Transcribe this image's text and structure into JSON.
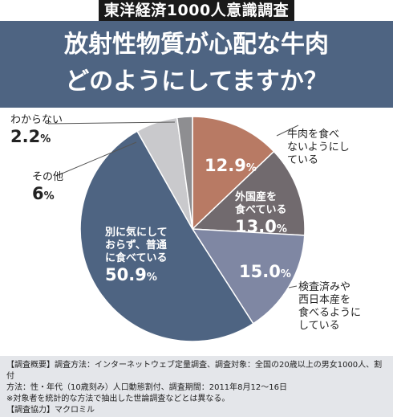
{
  "survey_tag": "東洋経済1000人意識調査",
  "title_line1": "放射性物質が心配な牛肉",
  "title_line2": "どのようにしてますか？",
  "chart_data": {
    "type": "pie",
    "start_angle_deg": 0,
    "direction": "clockwise",
    "slices": [
      {
        "label": "牛肉を食べないようにしている",
        "value": 12.9,
        "color": "#b87a64"
      },
      {
        "label": "外国産を食べている",
        "value": 13.0,
        "color": "#716a6e"
      },
      {
        "label": "検査済みや西日本産を食べるようにしている",
        "value": 15.0,
        "color": "#7f87a3"
      },
      {
        "label": "別に気にしておらず、普通に食べている",
        "value": 50.9,
        "color": "#4e6482"
      },
      {
        "label": "その他",
        "value": 6.0,
        "color": "#c9c9cc"
      },
      {
        "label": "わからない",
        "value": 2.2,
        "color": "#8e8e91"
      }
    ]
  },
  "labels": {
    "dont_eat_1": "牛肉を食べ",
    "dont_eat_2": "ないようにし",
    "dont_eat_3": "ている",
    "dont_eat_value": "12.9",
    "foreign_1": "外国産を",
    "foreign_2": "食べている",
    "foreign_value": "13.0",
    "checked_1": "検査済みや",
    "checked_2": "西日本産を",
    "checked_3": "食べるように",
    "checked_4": "している",
    "checked_value": "15.0",
    "normal_1": "別に気にして",
    "normal_2": "おらず、普通",
    "normal_3": "に食べている",
    "normal_value": "50.9",
    "other": "その他",
    "other_value": "6",
    "unknown": "わからない",
    "unknown_value": "2.2",
    "percent": "%"
  },
  "footer": {
    "line1": "【調査概要】調査方法：インターネットウェブ定量調査、調査対象：全国の20歳以上の男女1000人、割付",
    "line2": "方法：性・年代（10歳刻み）人口動態割付、調査期間：2011年8月12～16日",
    "line3": "※対象者を統計的な方法で抽出した世論調査などとは異なる。",
    "line4": "【調査協力】マクロミル"
  }
}
